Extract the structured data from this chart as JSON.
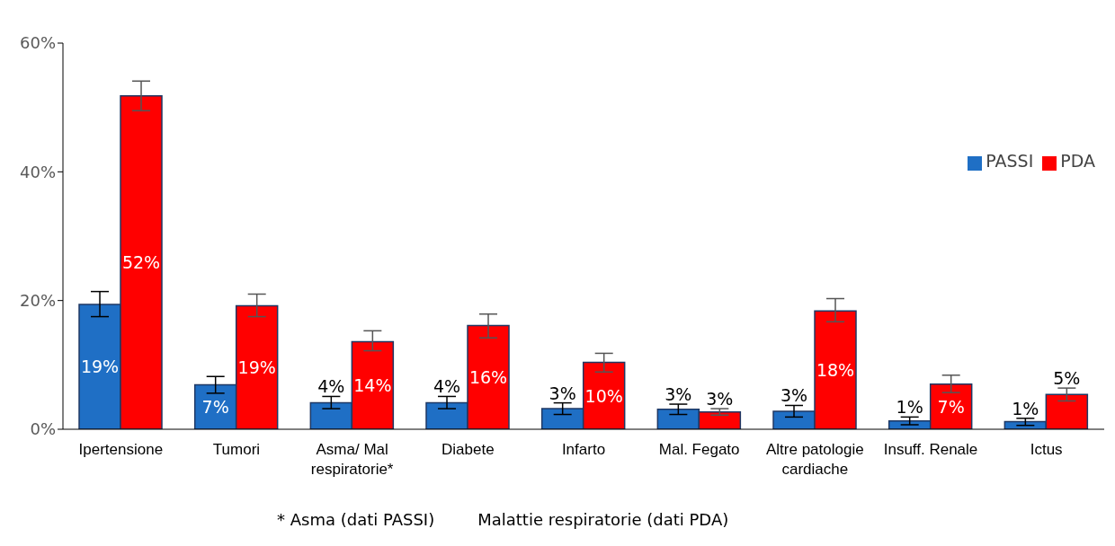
{
  "chart_data": {
    "type": "bar",
    "categories": [
      "Ipertensione",
      "Tumori",
      "Asma/ Mal respiratorie*",
      "Diabete",
      "Infarto",
      "Mal. Fegato",
      "Altre patologie cardiache",
      "Insuff. Renale",
      "Ictus"
    ],
    "series": [
      {
        "name": "PASSI",
        "color": "#1f6fc5",
        "values": [
          19.4,
          6.9,
          4.1,
          4.1,
          3.2,
          3.1,
          2.8,
          1.3,
          1.2
        ],
        "errors": [
          [
            17.5,
            21.4
          ],
          [
            5.6,
            8.2
          ],
          [
            3.2,
            5.1
          ],
          [
            3.2,
            5.1
          ],
          [
            2.3,
            4.1
          ],
          [
            2.3,
            3.9
          ],
          [
            1.9,
            3.7
          ],
          [
            0.7,
            1.9
          ],
          [
            0.6,
            1.7
          ]
        ],
        "value_labels": [
          "19%",
          "7%",
          "4%",
          "4%",
          "3%",
          "3%",
          "3%",
          "1%",
          "1%"
        ]
      },
      {
        "name": "PDA",
        "color": "#ff0000",
        "values": [
          51.8,
          19.2,
          13.6,
          16.1,
          10.4,
          2.7,
          18.4,
          7.0,
          5.4
        ],
        "errors": [
          [
            49.5,
            54.1
          ],
          [
            17.5,
            21.0
          ],
          [
            12.2,
            15.3
          ],
          [
            14.2,
            17.9
          ],
          [
            8.9,
            11.8
          ],
          [
            2.2,
            3.2
          ],
          [
            16.7,
            20.3
          ],
          [
            5.7,
            8.4
          ],
          [
            4.4,
            6.4
          ]
        ],
        "value_labels": [
          "52%",
          "19%",
          "14%",
          "16%",
          "10%",
          "3%",
          "18%",
          "7%",
          "5%"
        ]
      }
    ],
    "ylim": [
      0,
      60
    ],
    "yticks": [
      {
        "value": 0,
        "label": "0%"
      },
      {
        "value": 20,
        "label": "20%"
      },
      {
        "value": 40,
        "label": "40%"
      },
      {
        "value": 60,
        "label": "60%"
      }
    ],
    "grid": false,
    "legend": "right",
    "annotations": [
      "* Asma (dati PASSI)",
      "Malattie respiratorie (dati PDA)"
    ]
  }
}
